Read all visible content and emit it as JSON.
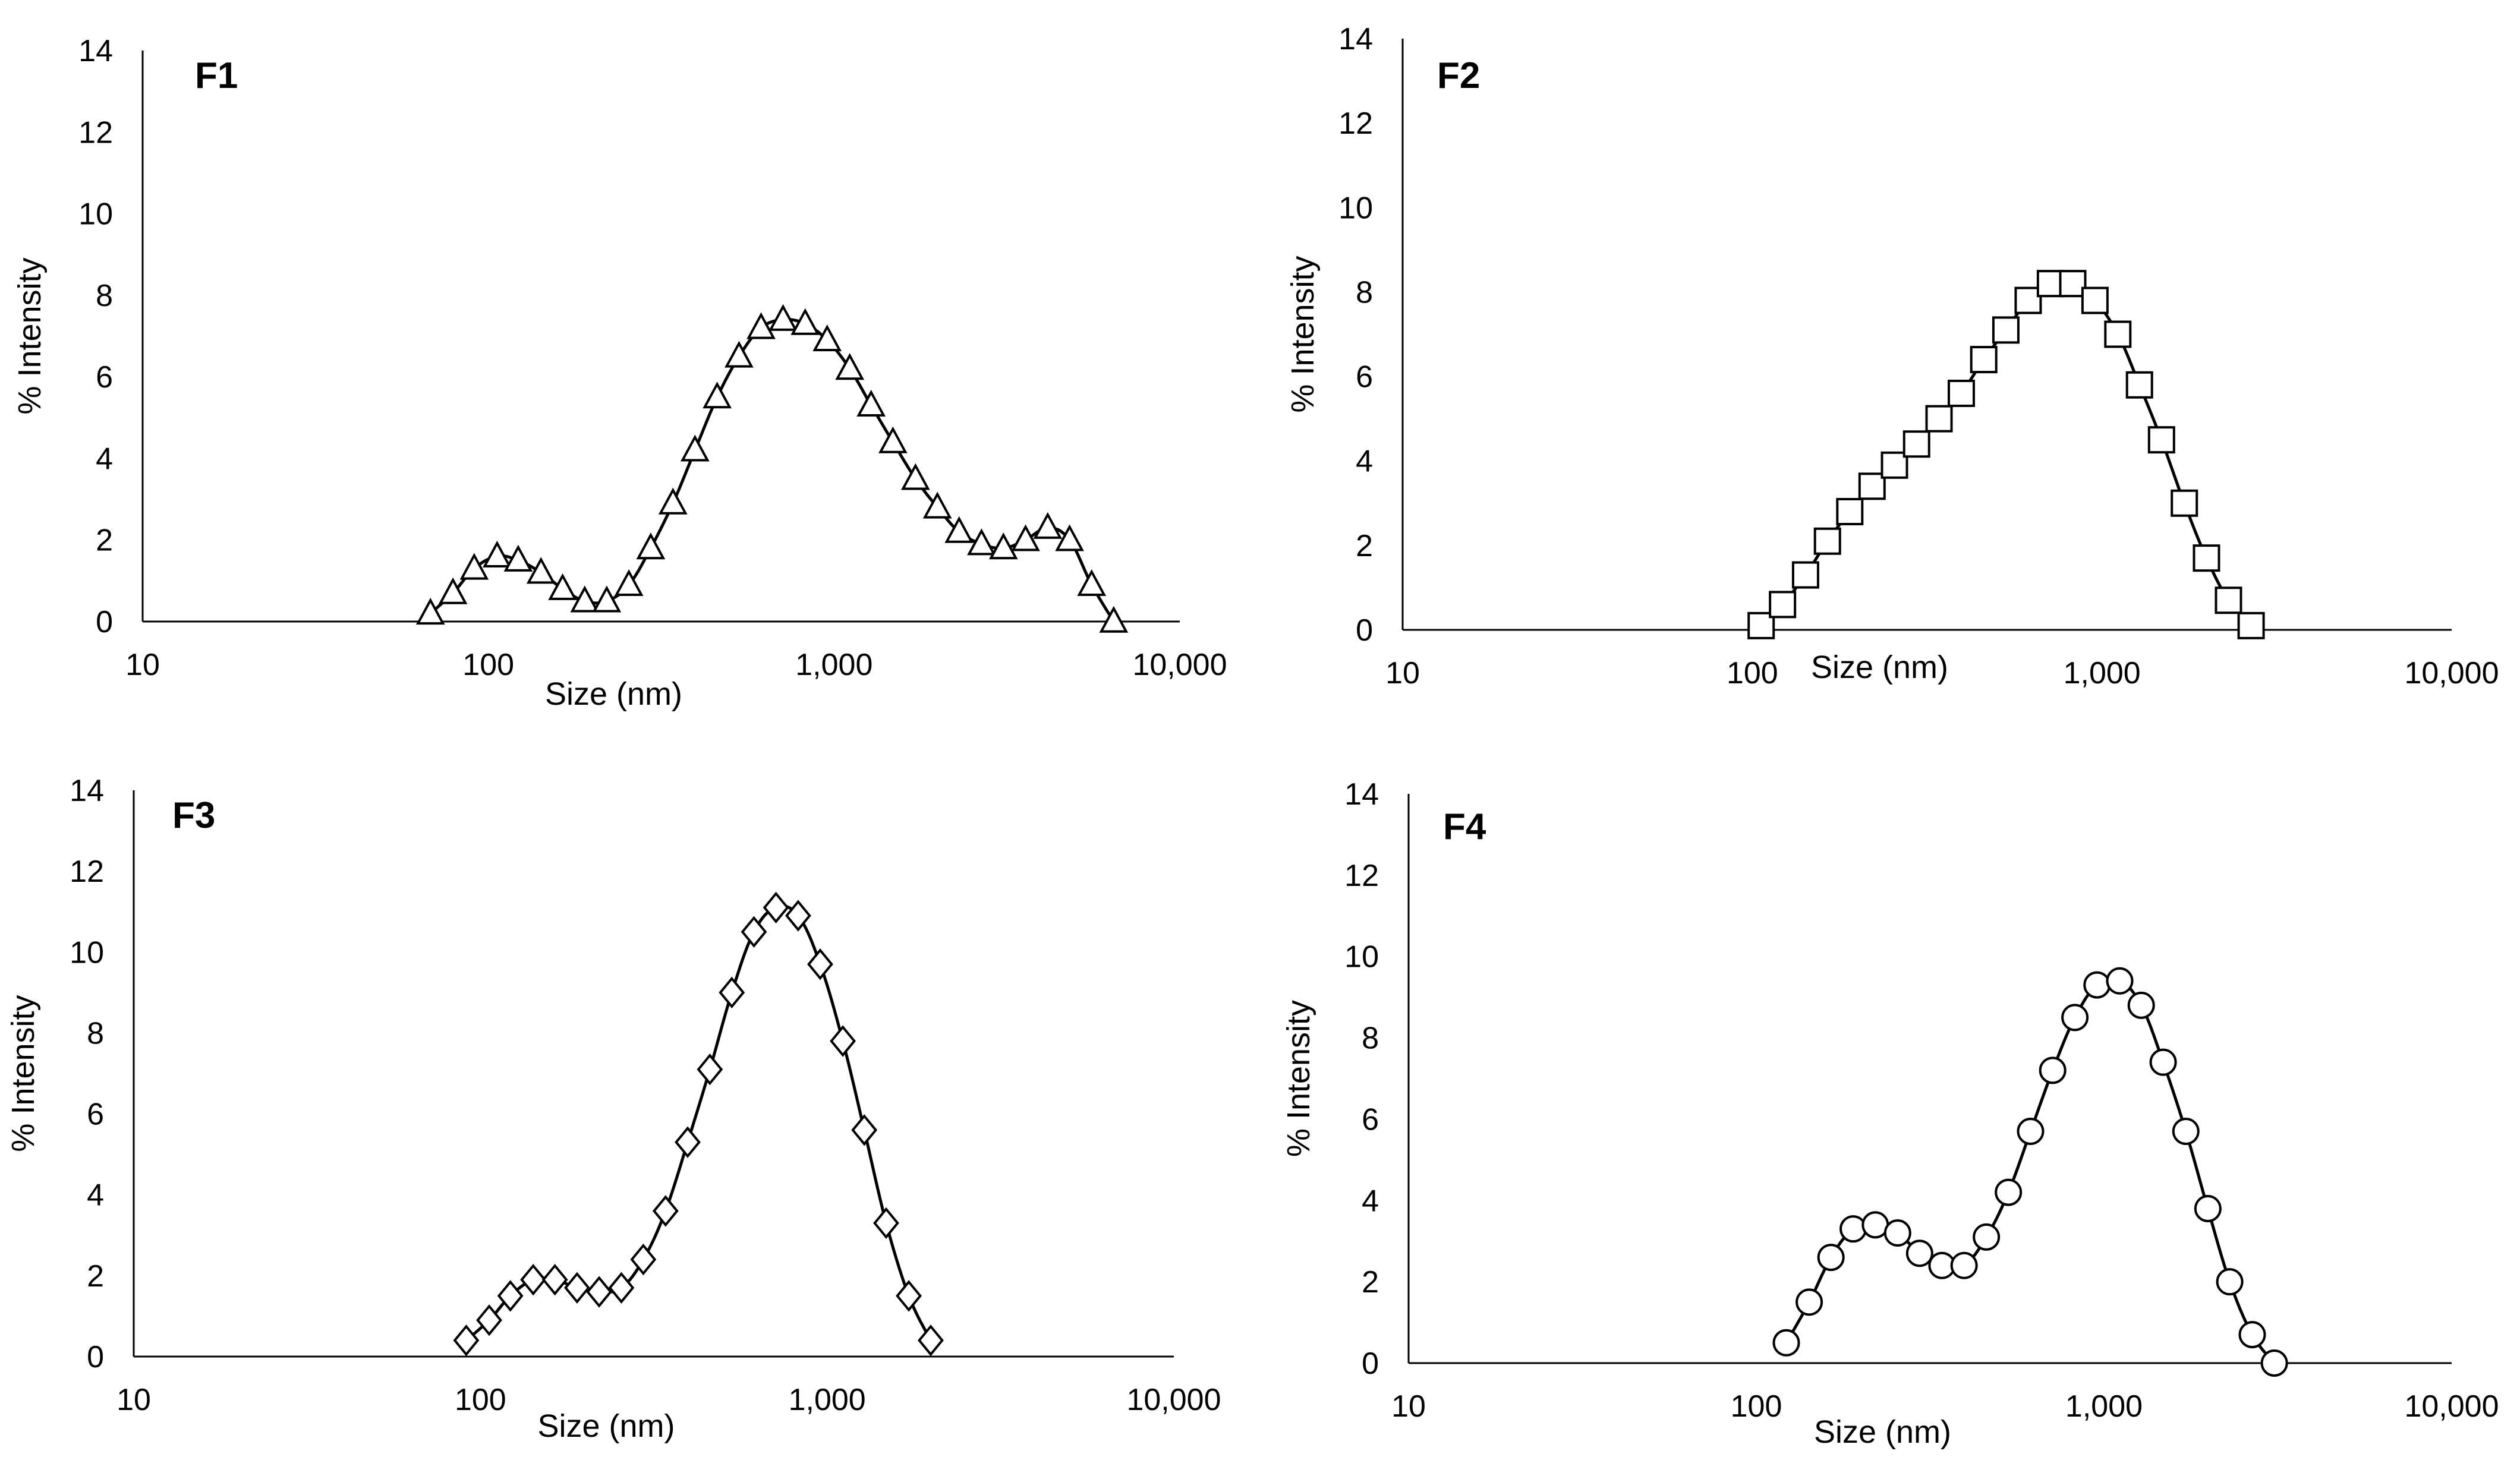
{
  "chart_data": [
    {
      "type": "line",
      "title": "F1",
      "xlabel": "Size (nm)",
      "ylabel": "% Intensity",
      "x_scale": "log",
      "xlim": [
        10,
        10000
      ],
      "ylim": [
        0,
        14
      ],
      "x_ticks": [
        10,
        100,
        1000,
        10000
      ],
      "x_tick_labels": [
        "10",
        "100",
        "1,000",
        "10,000"
      ],
      "y_ticks": [
        0,
        2,
        4,
        6,
        8,
        10,
        12,
        14
      ],
      "y_tick_labels": [
        "0",
        "2",
        "4",
        "6",
        "8",
        "10",
        "12",
        "14"
      ],
      "marker": "triangle",
      "series": [
        {
          "name": "F1",
          "x": [
            68,
            79,
            91,
            106,
            122,
            142,
            164,
            190,
            220,
            255,
            295,
            342,
            396,
            459,
            531,
            615,
            712,
            825,
            955,
            1110,
            1280,
            1480,
            1720,
            1990,
            2300,
            2670,
            3090,
            3580,
            4150,
            4800,
            5560,
            6440
          ],
          "y": [
            0.2,
            0.7,
            1.3,
            1.6,
            1.5,
            1.2,
            0.8,
            0.5,
            0.5,
            0.9,
            1.8,
            2.9,
            4.2,
            5.5,
            6.5,
            7.2,
            7.4,
            7.3,
            6.9,
            6.2,
            5.3,
            4.4,
            3.5,
            2.8,
            2.2,
            1.9,
            1.8,
            2.0,
            2.3,
            2.0,
            0.9,
            0.0
          ]
        }
      ]
    },
    {
      "type": "line",
      "title": "F2",
      "xlabel": "Size (nm)",
      "ylabel": "% Intensity",
      "x_scale": "log",
      "xlim": [
        10,
        10000
      ],
      "ylim": [
        0,
        14
      ],
      "x_ticks": [
        10,
        100,
        1000,
        10000
      ],
      "x_tick_labels": [
        "10",
        "100",
        "1,000",
        "10,000"
      ],
      "y_ticks": [
        0,
        2,
        4,
        6,
        8,
        10,
        12,
        14
      ],
      "y_tick_labels": [
        "0",
        "2",
        "4",
        "6",
        "8",
        "10",
        "12",
        "14"
      ],
      "marker": "square",
      "series": [
        {
          "name": "F2",
          "x": [
            106,
            122,
            142,
            164,
            190,
            220,
            255,
            295,
            342,
            396,
            459,
            531,
            615,
            712,
            825,
            955,
            1110,
            1280,
            1480,
            1720,
            1990,
            2300,
            2670
          ],
          "y": [
            0.1,
            0.6,
            1.3,
            2.1,
            2.8,
            3.4,
            3.9,
            4.4,
            5.0,
            5.6,
            6.4,
            7.1,
            7.8,
            8.2,
            8.2,
            7.8,
            7.0,
            5.8,
            4.5,
            3.0,
            1.7,
            0.7,
            0.1
          ]
        }
      ]
    },
    {
      "type": "line",
      "title": "F3",
      "xlabel": "Size (nm)",
      "ylabel": "% Intensity",
      "x_scale": "log",
      "xlim": [
        10,
        10000
      ],
      "ylim": [
        0,
        14
      ],
      "x_ticks": [
        10,
        100,
        1000,
        10000
      ],
      "x_tick_labels": [
        "10",
        "100",
        "1,000",
        "10,000"
      ],
      "y_ticks": [
        0,
        2,
        4,
        6,
        8,
        10,
        12,
        14
      ],
      "y_tick_labels": [
        "0",
        "2",
        "4",
        "6",
        "8",
        "10",
        "12",
        "14"
      ],
      "marker": "diamond",
      "series": [
        {
          "name": "F3",
          "x": [
            91,
            106,
            122,
            142,
            164,
            190,
            220,
            255,
            295,
            342,
            396,
            459,
            531,
            615,
            712,
            825,
            955,
            1110,
            1280,
            1480,
            1720,
            1990
          ],
          "y": [
            0.4,
            0.9,
            1.5,
            1.9,
            1.9,
            1.7,
            1.6,
            1.7,
            2.4,
            3.6,
            5.3,
            7.1,
            9.0,
            10.5,
            11.1,
            10.9,
            9.7,
            7.8,
            5.6,
            3.3,
            1.5,
            0.4
          ]
        }
      ]
    },
    {
      "type": "line",
      "title": "F4",
      "xlabel": "Size (nm)",
      "ylabel": "% Intensity",
      "x_scale": "log",
      "xlim": [
        10,
        10000
      ],
      "ylim": [
        0,
        14
      ],
      "x_ticks": [
        10,
        100,
        1000,
        10000
      ],
      "x_tick_labels": [
        "10",
        "100",
        "1,000",
        "10,000"
      ],
      "y_ticks": [
        0,
        2,
        4,
        6,
        8,
        10,
        12,
        14
      ],
      "y_tick_labels": [
        "0",
        "2",
        "4",
        "6",
        "8",
        "10",
        "12",
        "14"
      ],
      "marker": "circle",
      "series": [
        {
          "name": "F4",
          "x": [
            122,
            142,
            164,
            190,
            220,
            255,
            295,
            342,
            396,
            459,
            531,
            615,
            712,
            825,
            955,
            1110,
            1280,
            1480,
            1720,
            1990,
            2300,
            2670,
            3090
          ],
          "y": [
            0.5,
            1.5,
            2.6,
            3.3,
            3.4,
            3.2,
            2.7,
            2.4,
            2.4,
            3.1,
            4.2,
            5.7,
            7.2,
            8.5,
            9.3,
            9.4,
            8.8,
            7.4,
            5.7,
            3.8,
            2.0,
            0.7,
            0.0
          ]
        }
      ]
    }
  ]
}
